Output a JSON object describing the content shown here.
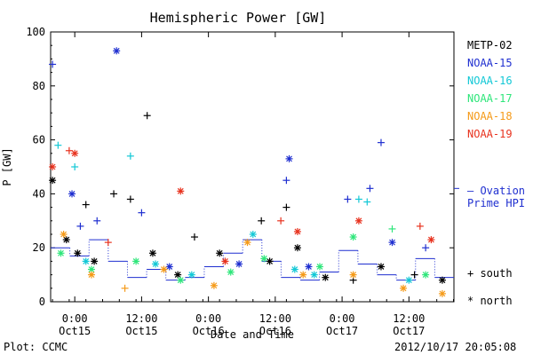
{
  "chart_data": {
    "type": "scatter",
    "title": "Hemispheric Power [GW]",
    "ylabel": "P [GW]",
    "xlabel": "Date and Time",
    "ylim": [
      0,
      100
    ],
    "yticks": [
      "0",
      "20",
      "40",
      "60",
      "80",
      "100"
    ],
    "xticks": [
      {
        "time": "2012-10-15 00:00",
        "line1": "0:00",
        "line2": "Oct15"
      },
      {
        "time": "2012-10-15 12:00",
        "line1": "12:00",
        "line2": "Oct15"
      },
      {
        "time": "2012-10-16 00:00",
        "line1": "0:00",
        "line2": "Oct16"
      },
      {
        "time": "2012-10-16 12:00",
        "line1": "12:00",
        "line2": "Oct16"
      },
      {
        "time": "2012-10-17 00:00",
        "line1": "0:00",
        "line2": "Oct17"
      },
      {
        "time": "2012-10-17 12:00",
        "line1": "12:00",
        "line2": "Oct17"
      }
    ],
    "xlim": [
      "2012-10-14 19:40",
      "2012-10-17 20:05"
    ],
    "marker_legend": {
      "south": "+ south",
      "north": "* north"
    },
    "ovation_label": [
      "– Ovation",
      "Prime HPI"
    ],
    "ovation_color": "#1f2fd0",
    "series": [
      {
        "name": "METP-02",
        "color": "#000000",
        "points": [
          [
            "2012-10-14 20:00",
            45,
            "n"
          ],
          [
            "2012-10-14 22:30",
            23,
            "n"
          ],
          [
            "2012-10-15 00:30",
            18,
            "n"
          ],
          [
            "2012-10-15 02:00",
            36,
            "s"
          ],
          [
            "2012-10-15 03:30",
            15,
            "n"
          ],
          [
            "2012-10-15 07:00",
            40,
            "s"
          ],
          [
            "2012-10-15 10:00",
            38,
            "s"
          ],
          [
            "2012-10-15 13:00",
            69,
            "s"
          ],
          [
            "2012-10-15 14:00",
            18,
            "n"
          ],
          [
            "2012-10-15 18:30",
            10,
            "n"
          ],
          [
            "2012-10-15 21:30",
            24,
            "s"
          ],
          [
            "2012-10-16 02:00",
            18,
            "n"
          ],
          [
            "2012-10-16 09:30",
            30,
            "s"
          ],
          [
            "2012-10-16 11:00",
            15,
            "n"
          ],
          [
            "2012-10-16 14:00",
            35,
            "s"
          ],
          [
            "2012-10-16 16:00",
            20,
            "n"
          ],
          [
            "2012-10-16 21:00",
            9,
            "n"
          ],
          [
            "2012-10-17 02:00",
            8,
            "s"
          ],
          [
            "2012-10-17 07:00",
            13,
            "n"
          ],
          [
            "2012-10-17 13:00",
            10,
            "s"
          ],
          [
            "2012-10-17 18:00",
            8,
            "n"
          ]
        ]
      },
      {
        "name": "NOAA-15",
        "color": "#1f2fd0",
        "points": [
          [
            "2012-10-14 20:00",
            88,
            "s"
          ],
          [
            "2012-10-14 23:30",
            40,
            "n"
          ],
          [
            "2012-10-15 01:00",
            28,
            "s"
          ],
          [
            "2012-10-15 04:00",
            30,
            "s"
          ],
          [
            "2012-10-15 07:30",
            93,
            "n"
          ],
          [
            "2012-10-15 12:00",
            33,
            "s"
          ],
          [
            "2012-10-15 17:00",
            13,
            "n"
          ],
          [
            "2012-10-16 05:30",
            14,
            "n"
          ],
          [
            "2012-10-16 14:00",
            45,
            "s"
          ],
          [
            "2012-10-16 14:30",
            53,
            "n"
          ],
          [
            "2012-10-16 18:00",
            13,
            "n"
          ],
          [
            "2012-10-17 01:00",
            38,
            "s"
          ],
          [
            "2012-10-17 05:00",
            42,
            "s"
          ],
          [
            "2012-10-17 07:00",
            59,
            "s"
          ],
          [
            "2012-10-17 09:00",
            22,
            "n"
          ],
          [
            "2012-10-17 15:00",
            20,
            "s"
          ]
        ]
      },
      {
        "name": "NOAA-16",
        "color": "#12c8d6",
        "points": [
          [
            "2012-10-14 21:00",
            58,
            "s"
          ],
          [
            "2012-10-15 00:00",
            50,
            "s"
          ],
          [
            "2012-10-15 02:00",
            15,
            "n"
          ],
          [
            "2012-10-15 10:00",
            54,
            "s"
          ],
          [
            "2012-10-15 14:30",
            14,
            "n"
          ],
          [
            "2012-10-15 21:00",
            10,
            "n"
          ],
          [
            "2012-10-16 08:00",
            25,
            "n"
          ],
          [
            "2012-10-16 15:30",
            12,
            "n"
          ],
          [
            "2012-10-16 19:00",
            10,
            "n"
          ],
          [
            "2012-10-17 03:00",
            38,
            "s"
          ],
          [
            "2012-10-17 04:30",
            37,
            "s"
          ],
          [
            "2012-10-17 12:00",
            8,
            "n"
          ]
        ]
      },
      {
        "name": "NOAA-17",
        "color": "#2ee67a",
        "points": [
          [
            "2012-10-14 21:30",
            18,
            "n"
          ],
          [
            "2012-10-15 03:00",
            12,
            "n"
          ],
          [
            "2012-10-15 11:00",
            15,
            "n"
          ],
          [
            "2012-10-15 19:00",
            8,
            "n"
          ],
          [
            "2012-10-16 04:00",
            11,
            "n"
          ],
          [
            "2012-10-16 10:00",
            16,
            "n"
          ],
          [
            "2012-10-16 20:00",
            13,
            "n"
          ],
          [
            "2012-10-17 02:00",
            24,
            "n"
          ],
          [
            "2012-10-17 09:00",
            27,
            "s"
          ],
          [
            "2012-10-17 15:00",
            10,
            "n"
          ]
        ]
      },
      {
        "name": "NOAA-18",
        "color": "#f59a18",
        "points": [
          [
            "2012-10-14 22:00",
            25,
            "n"
          ],
          [
            "2012-10-15 03:00",
            10,
            "n"
          ],
          [
            "2012-10-15 09:00",
            5,
            "s"
          ],
          [
            "2012-10-15 16:00",
            12,
            "n"
          ],
          [
            "2012-10-16 01:00",
            6,
            "n"
          ],
          [
            "2012-10-16 07:00",
            22,
            "n"
          ],
          [
            "2012-10-16 17:00",
            10,
            "n"
          ],
          [
            "2012-10-17 02:00",
            10,
            "n"
          ],
          [
            "2012-10-17 11:00",
            5,
            "n"
          ],
          [
            "2012-10-17 18:00",
            3,
            "n"
          ]
        ]
      },
      {
        "name": "NOAA-19",
        "color": "#e8321e",
        "points": [
          [
            "2012-10-14 20:00",
            50,
            "n"
          ],
          [
            "2012-10-14 23:00",
            56,
            "s"
          ],
          [
            "2012-10-15 00:00",
            55,
            "n"
          ],
          [
            "2012-10-15 06:00",
            22,
            "s"
          ],
          [
            "2012-10-15 19:00",
            41,
            "n"
          ],
          [
            "2012-10-16 03:00",
            15,
            "n"
          ],
          [
            "2012-10-16 13:00",
            30,
            "s"
          ],
          [
            "2012-10-16 16:00",
            26,
            "n"
          ],
          [
            "2012-10-17 03:00",
            30,
            "n"
          ],
          [
            "2012-10-17 14:00",
            28,
            "s"
          ],
          [
            "2012-10-17 16:00",
            23,
            "n"
          ]
        ]
      }
    ]
  },
  "footer": {
    "left": "Plot: CCMC",
    "right": "2012/10/17 20:05:08"
  }
}
